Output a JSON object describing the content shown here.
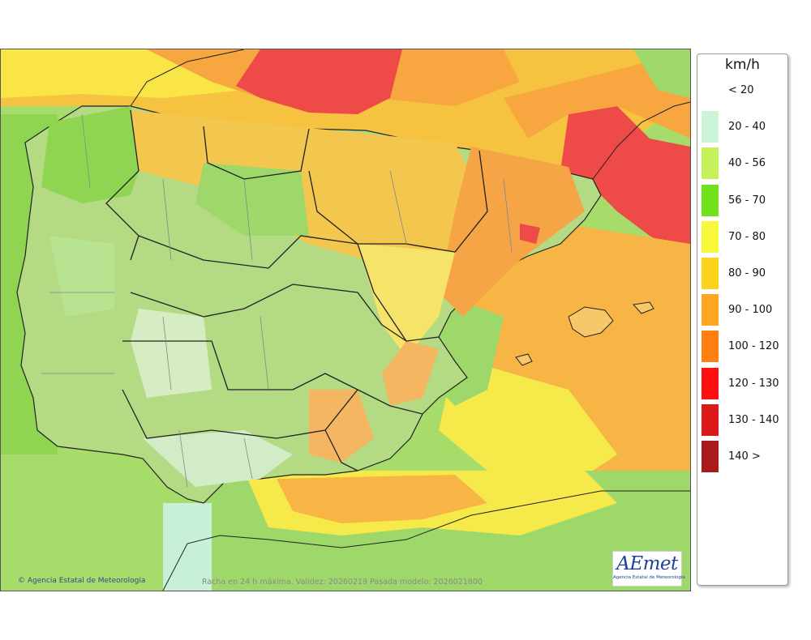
{
  "map": {
    "credit": "Agencia Estatal de Meteorología",
    "caption": "Racha en 24 h máxima. Validez: 20260219 Pasada modelo: 2026021800",
    "logo_text": "AEmet",
    "logo_subtext": "Agencia Estatal de Meteorología"
  },
  "legend": {
    "unit": "km/h",
    "items": [
      {
        "label": "< 20",
        "color": "#ffffff"
      },
      {
        "label": "20 - 40",
        "color": "#ccf5d8"
      },
      {
        "label": "40 - 56",
        "color": "#c5f25a"
      },
      {
        "label": "56 - 70",
        "color": "#6fe21c"
      },
      {
        "label": "70 - 80",
        "color": "#f8f83a"
      },
      {
        "label": "80 - 90",
        "color": "#fcd21a"
      },
      {
        "label": "90 - 100",
        "color": "#ffa520"
      },
      {
        "label": "100 - 120",
        "color": "#ff8010"
      },
      {
        "label": "120 - 130",
        "color": "#ff1010"
      },
      {
        "label": "130 - 140",
        "color": "#dd1818"
      },
      {
        "label": "140 >",
        "color": "#aa1c1c"
      }
    ]
  }
}
